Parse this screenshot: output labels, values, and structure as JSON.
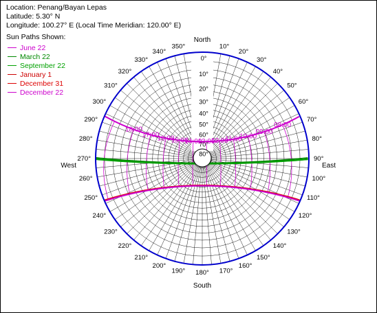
{
  "info": {
    "location": "Location: Penang/Bayan Lepas",
    "latitude": "Latitude: 5.30° N",
    "longitude": "Longitude: 100.27° E (Local Time Meridian: 120.00° E)"
  },
  "legend": {
    "title": "Sun Paths Shown:",
    "items": [
      {
        "label": "June 22",
        "color": "#cc00cc"
      },
      {
        "label": "March 22",
        "color": "#008800"
      },
      {
        "label": "September 22",
        "color": "#00a000"
      },
      {
        "label": "January 1",
        "color": "#cc0000"
      },
      {
        "label": "December 31",
        "color": "#dd0000"
      },
      {
        "label": "December 22",
        "color": "#cc00cc"
      }
    ]
  },
  "directions": {
    "north": "North",
    "south": "South",
    "east": "East",
    "west": "West"
  },
  "chart_data": {
    "type": "polar sun path diagram",
    "projection": "stereographic",
    "azimuth_tick_step_deg": 10,
    "azimuth_labels": [
      "350°",
      "10°",
      "20°",
      "30°",
      "40°",
      "50°",
      "60°",
      "70°",
      "80°",
      "90°",
      "100°",
      "110°",
      "120°",
      "130°",
      "140°",
      "150°",
      "160°",
      "170°",
      "180°",
      "190°",
      "200°",
      "210°",
      "220°",
      "230°",
      "240°",
      "250°",
      "260°",
      "270°",
      "280°",
      "290°",
      "300°",
      "310°",
      "320°",
      "330°",
      "340°"
    ],
    "altitude_labels": [
      "0°",
      "10°",
      "20°",
      "30°",
      "40°",
      "50°",
      "60°",
      "70°",
      "80°"
    ],
    "altitude_label_values": [
      0,
      10,
      20,
      30,
      40,
      50,
      60,
      70,
      80
    ],
    "hour_labels": [
      "18:00",
      "17:00",
      "16:00",
      "15:00",
      "14:00",
      "13:00",
      "12:00",
      "11:00",
      "10:00",
      "09:00",
      "08:00"
    ],
    "hour_label_values": [
      18,
      17,
      16,
      15,
      14,
      13,
      12,
      11,
      10,
      9,
      8
    ],
    "sun_paths": [
      {
        "name": "June 22",
        "declination_deg": 23.44,
        "color": "#cc00cc"
      },
      {
        "name": "March 22",
        "declination_deg": 0.4,
        "color": "#008800"
      },
      {
        "name": "September 22",
        "declination_deg": -0.4,
        "color": "#00a000"
      },
      {
        "name": "January 1",
        "declination_deg": -23.0,
        "color": "#cc0000"
      },
      {
        "name": "December 31",
        "declination_deg": -23.1,
        "color": "#dd0000"
      },
      {
        "name": "December 22",
        "declination_deg": -23.44,
        "color": "#cc00cc"
      }
    ],
    "hour_line_color": "#cc00cc",
    "rim_color": "#0000cc",
    "grid_color": "#000000"
  }
}
